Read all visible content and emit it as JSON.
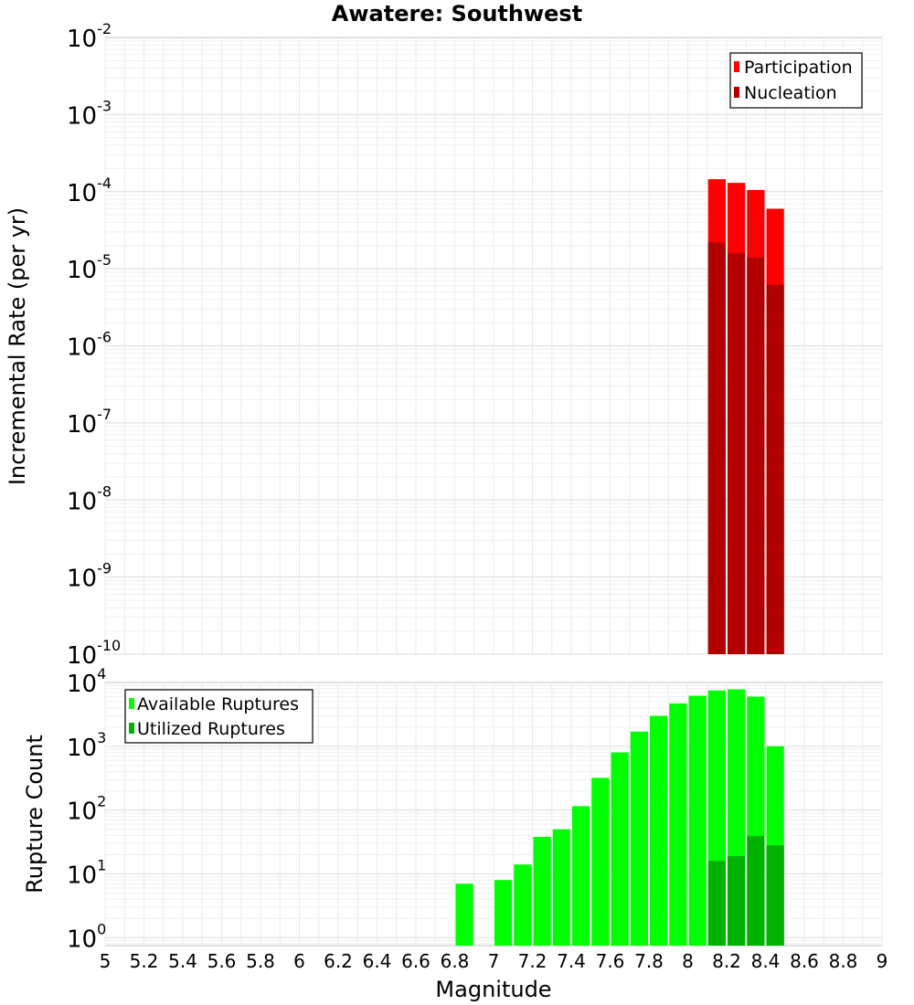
{
  "chart_data": [
    {
      "type": "bar",
      "title": "Awatere: Southwest",
      "ylabel": "Incremental Rate (per yr)",
      "xlabel": "",
      "ylog": true,
      "ylim": [
        1e-10,
        0.01
      ],
      "xlim": [
        5,
        9
      ],
      "grid": true,
      "legend_position": "top-right",
      "bin_width": 0.1,
      "series": [
        {
          "name": "Participation",
          "color": "#ff0000",
          "x": [
            8.15,
            8.25,
            8.35,
            8.45
          ],
          "values": [
            0.000145,
            0.00013,
            0.000105,
            6e-05
          ]
        },
        {
          "name": "Nucleation",
          "color": "#b20000",
          "x": [
            8.15,
            8.25,
            8.35,
            8.45
          ],
          "values": [
            2.2e-05,
            1.6e-05,
            1.4e-05,
            6.2e-06
          ]
        }
      ],
      "yticks": [
        {
          "base": "10",
          "exp": "-2"
        },
        {
          "base": "10",
          "exp": "-3"
        },
        {
          "base": "10",
          "exp": "-4"
        },
        {
          "base": "10",
          "exp": "-5"
        },
        {
          "base": "10",
          "exp": "-6"
        },
        {
          "base": "10",
          "exp": "-7"
        },
        {
          "base": "10",
          "exp": "-8"
        },
        {
          "base": "10",
          "exp": "-9"
        },
        {
          "base": "10",
          "exp": "-10"
        }
      ]
    },
    {
      "type": "bar",
      "title": "",
      "ylabel": "Rupture Count",
      "xlabel": "Magnitude",
      "ylog": true,
      "ylim": [
        0.75,
        10000
      ],
      "xlim": [
        5,
        9
      ],
      "grid": true,
      "legend_position": "top-left",
      "bin_width": 0.1,
      "series": [
        {
          "name": "Available Ruptures",
          "color": "#00ff00",
          "x": [
            6.85,
            7.05,
            7.15,
            7.25,
            7.35,
            7.45,
            7.55,
            7.65,
            7.75,
            7.85,
            7.95,
            8.05,
            8.15,
            8.25,
            8.35,
            8.45
          ],
          "values": [
            7,
            8,
            14,
            38,
            50,
            115,
            320,
            800,
            1700,
            3000,
            4700,
            6200,
            7500,
            7800,
            6000,
            1000
          ]
        },
        {
          "name": "Utilized Ruptures",
          "color": "#00b200",
          "x": [
            8.15,
            8.25,
            8.35,
            8.45
          ],
          "values": [
            16,
            19,
            39,
            28
          ]
        }
      ],
      "yticks": [
        {
          "base": "10",
          "exp": "4"
        },
        {
          "base": "10",
          "exp": "3"
        },
        {
          "base": "10",
          "exp": "2"
        },
        {
          "base": "10",
          "exp": "1"
        },
        {
          "base": "10",
          "exp": "0"
        }
      ],
      "xticks": [
        "5",
        "5.2",
        "5.4",
        "5.6",
        "5.8",
        "6",
        "6.2",
        "6.4",
        "6.6",
        "6.8",
        "7",
        "7.2",
        "7.4",
        "7.6",
        "7.8",
        "8",
        "8.2",
        "8.4",
        "8.6",
        "8.8",
        "9"
      ]
    }
  ]
}
